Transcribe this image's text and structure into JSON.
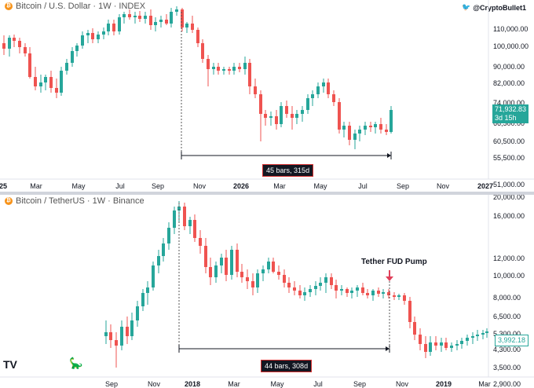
{
  "top_chart": {
    "title": "Bitcoin / U.S. Dollar · 1W · INDEX",
    "price_labels": [
      "110,000.00",
      "100,000.00",
      "90,000.00",
      "82,000.00",
      "74,000.00",
      "66,500.00",
      "60,500.00",
      "55,500.00",
      "51,000.00"
    ],
    "time_labels": [
      "25",
      "Mar",
      "May",
      "Jul",
      "Sep",
      "Nov",
      "2026",
      "Mar",
      "May",
      "Jul",
      "Sep",
      "Nov",
      "2027"
    ],
    "current_price": "71,932.83",
    "countdown": "3d 15h",
    "range_bars": "45 bars",
    "range_days": "315d",
    "twitter_handle": "@CryptoBullet1"
  },
  "bottom_chart": {
    "title": "Bitcoin / TetherUS · 1W · Binance",
    "price_labels": [
      "20,000.00",
      "16,000.00",
      "12,000.00",
      "10,000.00",
      "8,000.00",
      "6,500.00",
      "5,300.00",
      "4,300.00",
      "3,500.00",
      "2,900.00"
    ],
    "time_labels": [
      "Sep",
      "Nov",
      "2018",
      "Mar",
      "May",
      "Jul",
      "Sep",
      "Nov",
      "2019",
      "Mar"
    ],
    "current_price": "3,992.18",
    "range_bars": "44 bars",
    "range_days": "308d",
    "annotation": "Tether FUD Pump"
  },
  "colors": {
    "up": "#26a69a",
    "down": "#ef5350",
    "axis_text": "#131722"
  }
}
